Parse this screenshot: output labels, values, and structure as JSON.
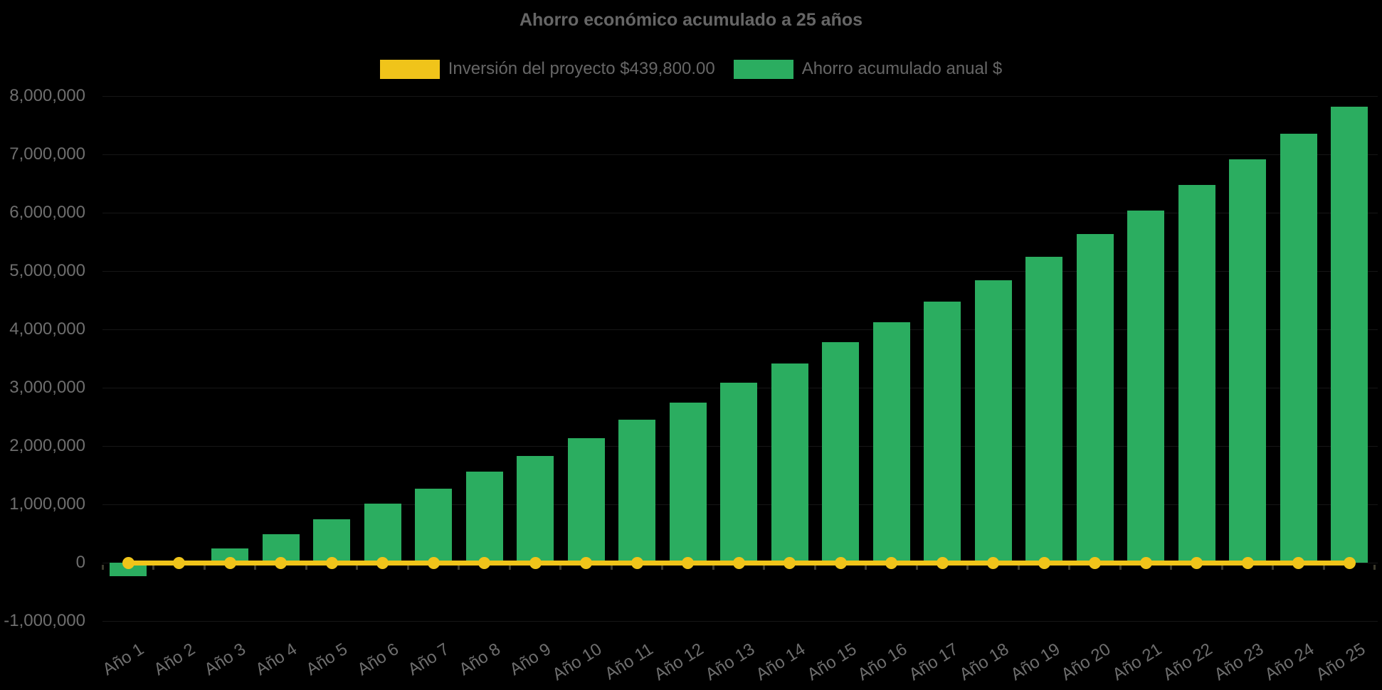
{
  "title": "Ahorro económico acumulado a 25 años",
  "legend": [
    {
      "label": "Inversión del proyecto $439,800.00",
      "color": "#F0C41A",
      "series_type": "line"
    },
    {
      "label": "Ahorro acumulado anual $",
      "color": "#2BAD60",
      "series_type": "bar"
    }
  ],
  "colors": {
    "background": "#000000",
    "bar_green": "#2BAD60",
    "line_yellow": "#F0C41A",
    "title_text": "#666666",
    "tick_text": "#6e6e6e"
  },
  "chart_data": {
    "type": "bar",
    "title": "Ahorro económico acumulado a 25 años",
    "categories": [
      "Año 1",
      "Año 2",
      "Año 3",
      "Año 4",
      "Año 5",
      "Año 6",
      "Año 7",
      "Año 8",
      "Año 9",
      "Año 10",
      "Año 11",
      "Año 12",
      "Año 13",
      "Año 14",
      "Año 15",
      "Año 16",
      "Año 17",
      "Año 18",
      "Año 19",
      "Año 20",
      "Año 21",
      "Año 22",
      "Año 23",
      "Año 24",
      "Año 25"
    ],
    "series": [
      {
        "name": "Inversión del proyecto $439,800.00",
        "type": "line",
        "color": "#F0C41A",
        "values": [
          0,
          0,
          0,
          0,
          0,
          0,
          0,
          0,
          0,
          0,
          0,
          0,
          0,
          0,
          0,
          0,
          0,
          0,
          0,
          0,
          0,
          0,
          0,
          0,
          0
        ]
      },
      {
        "name": "Ahorro acumulado anual $",
        "type": "bar",
        "color": "#2BAD60",
        "values": [
          -230000,
          0,
          250000,
          490000,
          745000,
          1015000,
          1270000,
          1565000,
          1835000,
          2140000,
          2450000,
          2750000,
          3080000,
          3415000,
          3775000,
          4120000,
          4475000,
          4840000,
          5245000,
          5640000,
          6035000,
          6470000,
          6910000,
          7355000,
          7815000
        ]
      }
    ],
    "xlabel": "",
    "ylabel": "",
    "ylim": [
      -1000000,
      8000000
    ],
    "ytick_step": 1000000,
    "yticks": [
      {
        "value": 8000000,
        "label": "8,000,000"
      },
      {
        "value": 7000000,
        "label": "7,000,000"
      },
      {
        "value": 6000000,
        "label": "6,000,000"
      },
      {
        "value": 5000000,
        "label": "5,000,000"
      },
      {
        "value": 4000000,
        "label": "4,000,000"
      },
      {
        "value": 3000000,
        "label": "3,000,000"
      },
      {
        "value": 2000000,
        "label": "2,000,000"
      },
      {
        "value": 1000000,
        "label": "1,000,000"
      },
      {
        "value": 0,
        "label": "0"
      },
      {
        "value": -1000000,
        "label": "-1,000,000"
      }
    ],
    "grid": "subtle",
    "legend_position": "top"
  }
}
